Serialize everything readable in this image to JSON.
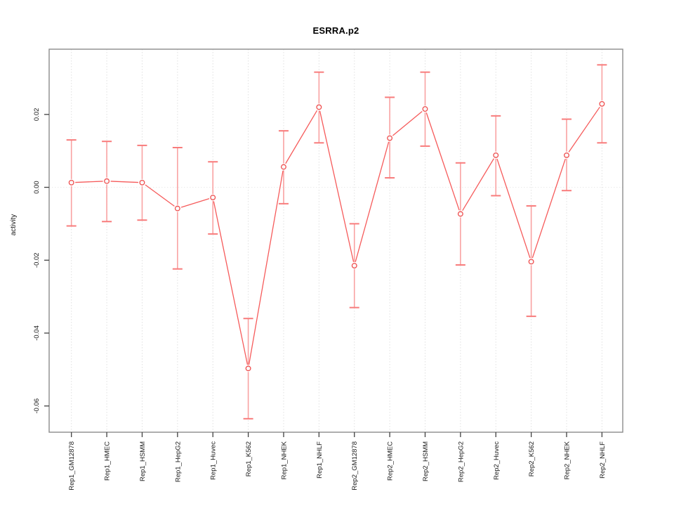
{
  "title": "ESRRA.p2",
  "chart_data": {
    "type": "line",
    "title": "ESRRA.p2",
    "xlabel": "",
    "ylabel": "activity",
    "legend": "none",
    "grid": {
      "vertical_dotted": true,
      "zero_line_dotted": true
    },
    "categories": [
      "Rep1_GM12878",
      "Rep1_HMEC",
      "Rep1_HSMM",
      "Rep1_HepG2",
      "Rep1_Huvec",
      "Rep1_K562",
      "Rep1_NHEK",
      "Rep1_NHLF",
      "Rep2_GM12878",
      "Rep2_HMEC",
      "Rep2_HSMM",
      "Rep2_HepG2",
      "Rep2_Huvec",
      "Rep2_K562",
      "Rep2_NHEK",
      "Rep2_NHLF"
    ],
    "series": [
      {
        "name": "activity",
        "values": [
          0.0013,
          0.0017,
          0.0013,
          -0.0058,
          -0.0028,
          -0.0497,
          0.0056,
          0.022,
          -0.0215,
          0.0135,
          0.0215,
          -0.0073,
          0.0088,
          -0.0204,
          0.0088,
          0.0229
        ],
        "upper": [
          0.013,
          0.0126,
          0.0115,
          0.0109,
          0.007,
          -0.036,
          0.0155,
          0.0316,
          -0.01,
          0.0247,
          0.0316,
          0.0067,
          0.0196,
          -0.0051,
          0.0187,
          0.0336
        ],
        "lower": [
          -0.0106,
          -0.0094,
          -0.009,
          -0.0224,
          -0.0128,
          -0.0635,
          -0.0045,
          0.0122,
          -0.033,
          0.0026,
          0.0113,
          -0.0213,
          -0.0023,
          -0.0354,
          -0.0009,
          0.0122
        ]
      }
    ],
    "ylim": [
      -0.0672,
      0.0379
    ],
    "y_ticks": [
      0.02,
      0,
      -0.02,
      -0.04,
      -0.06
    ],
    "y_tick_labels": [
      "0.02",
      "0.00",
      "-0.02",
      "-0.04",
      "-0.06"
    ],
    "colors": {
      "line": "#f65b5b",
      "point": "#ef4e4e",
      "error_stem": "#f9a2a2",
      "error_cap": "#f87c7c",
      "grid": "#e0e0e0",
      "zero_line": "#ebebeb",
      "box": "#8c8c8c",
      "tick": "#404040",
      "text": "#1a1a1a"
    }
  }
}
